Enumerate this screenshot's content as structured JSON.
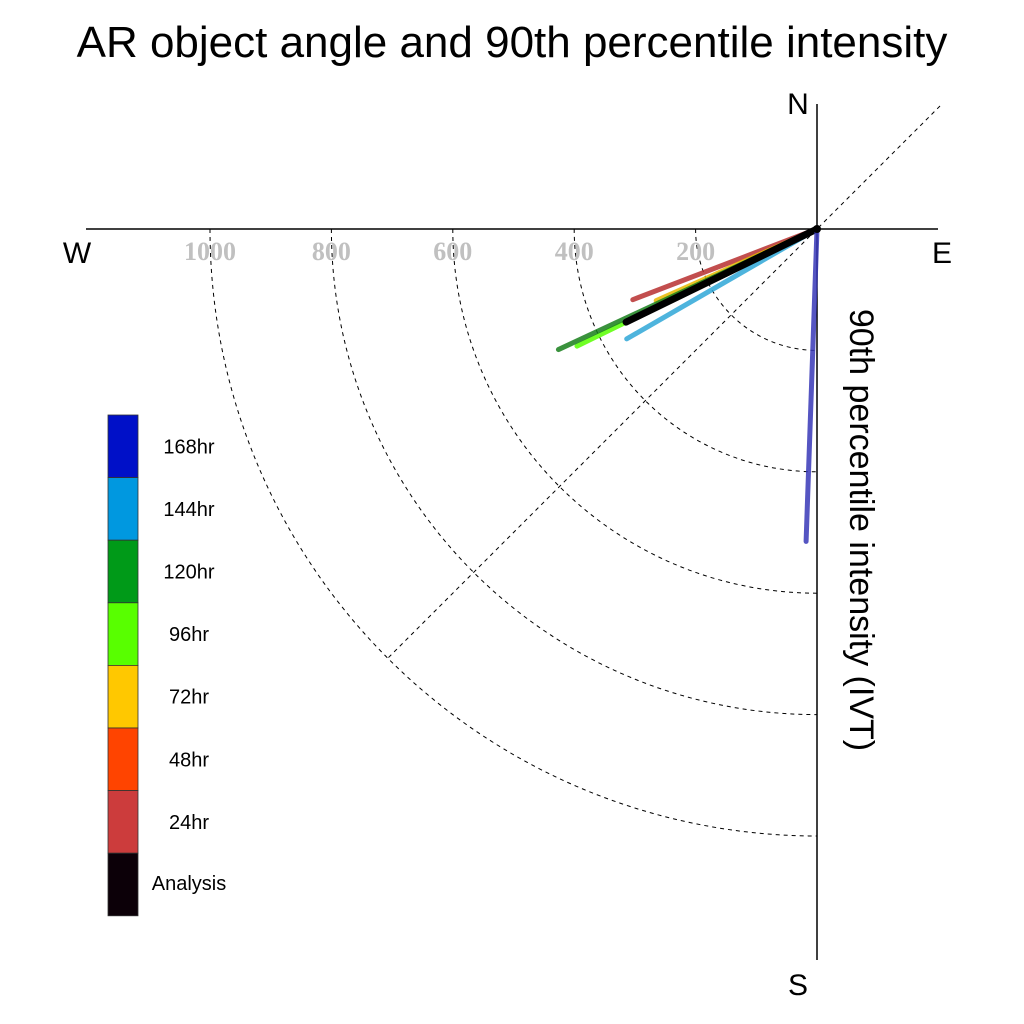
{
  "chart_data": {
    "type": "polar-vector",
    "title": "AR object angle and 90th percentile intensity",
    "ylabel": "90th percentile intensity (IVT)",
    "compass": {
      "north": "N",
      "south": "S",
      "east": "E",
      "west": "W"
    },
    "radial_ticks": [
      "1000",
      "800",
      "600",
      "400",
      "200"
    ],
    "radial_tick_values": [
      1000,
      800,
      600,
      400,
      200
    ],
    "rmax": 1200,
    "grid": true,
    "legend_placement": "left",
    "legend": [
      {
        "label": "168hr",
        "color": "#0010c8"
      },
      {
        "label": "144hr",
        "color": "#0098e0"
      },
      {
        "label": "120hr",
        "color": "#009a18"
      },
      {
        "label": "96hr",
        "color": "#58ff00"
      },
      {
        "label": "72hr",
        "color": "#ffc800"
      },
      {
        "label": "48hr",
        "color": "#ff4400"
      },
      {
        "label": "24hr",
        "color": "#cc3c3c"
      },
      {
        "label": "Analysis",
        "color": "#0c0008"
      }
    ],
    "series": [
      {
        "name": "24hr",
        "color": "#b83030",
        "angle": 201,
        "value": 325
      },
      {
        "name": "72hr",
        "color": "#e8b800",
        "angle": 204,
        "value": 290
      },
      {
        "name": "96hr",
        "color": "#58ff00",
        "angle": 206,
        "value": 440
      },
      {
        "name": "120hr",
        "color": "#18801c",
        "angle": 205,
        "value": 470
      },
      {
        "name": "144hr",
        "color": "#30a8d8",
        "angle": 210,
        "value": 362
      },
      {
        "name": "Analysis",
        "color": "#000000",
        "angle": 206,
        "value": 350
      },
      {
        "name": "168hr",
        "color": "#3838b8",
        "angle": 268,
        "value": 515
      }
    ]
  }
}
